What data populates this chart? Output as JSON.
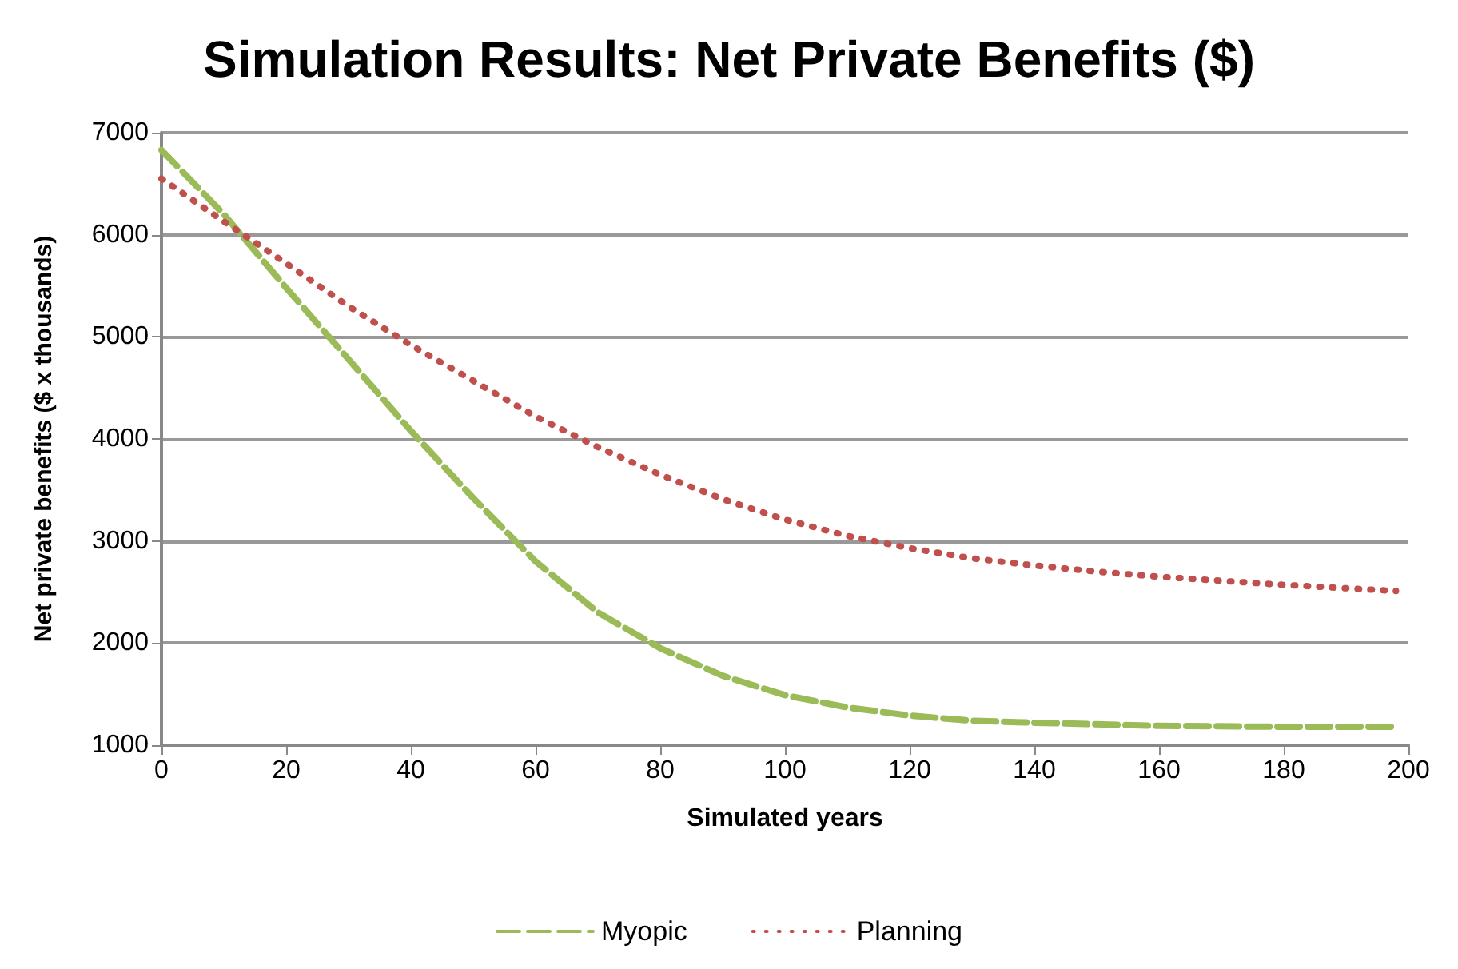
{
  "chart_data": {
    "type": "line",
    "title": "Simulation Results: Net Private Benefits ($)",
    "xlabel": "Simulated years",
    "ylabel": "Net private benefits ($ x thousands)",
    "xlim": [
      0,
      200
    ],
    "xticks": [
      0,
      20,
      40,
      60,
      80,
      100,
      120,
      140,
      160,
      180,
      200
    ],
    "ylim": [
      1000,
      7000
    ],
    "yticks": [
      1000,
      2000,
      3000,
      4000,
      5000,
      6000,
      7000
    ],
    "grid": "y",
    "legend": "bottom",
    "marker": "none",
    "series": [
      {
        "name": "Myopic",
        "color": "#9bbb59",
        "line_style": "dashed",
        "x": [
          0,
          10,
          20,
          30,
          40,
          50,
          60,
          70,
          80,
          90,
          100,
          110,
          120,
          130,
          140,
          160,
          180,
          198
        ],
        "values": [
          6830,
          6200,
          5480,
          4780,
          4080,
          3420,
          2800,
          2300,
          1950,
          1680,
          1490,
          1370,
          1290,
          1240,
          1220,
          1190,
          1180,
          1180
        ]
      },
      {
        "name": "Planning",
        "color": "#c0504d",
        "line_style": "dotted",
        "x": [
          0,
          10,
          20,
          30,
          40,
          50,
          60,
          70,
          80,
          90,
          100,
          110,
          120,
          130,
          140,
          150,
          160,
          170,
          180,
          198
        ],
        "values": [
          6550,
          6130,
          5720,
          5300,
          4920,
          4570,
          4220,
          3920,
          3650,
          3410,
          3210,
          3050,
          2930,
          2830,
          2760,
          2700,
          2650,
          2610,
          2570,
          2510
        ]
      }
    ]
  }
}
